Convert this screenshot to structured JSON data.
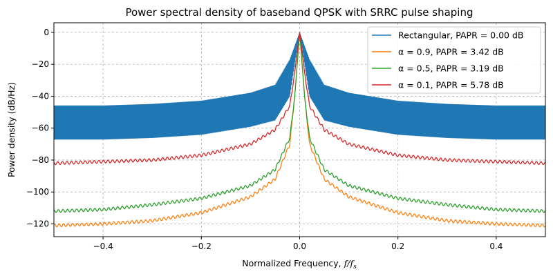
{
  "chart_data": {
    "type": "line",
    "title": "Power spectral density of baseband QPSK with SRRC pulse shaping",
    "xlabel": "Normalized Frequency, ",
    "xlabel_math": "f/f",
    "xlabel_sub": "s",
    "ylabel": "Power density (dB/Hz)",
    "xlim": [
      -0.5,
      0.5
    ],
    "ylim": [
      -128,
      6
    ],
    "xticks": [
      -0.4,
      -0.2,
      0.0,
      0.2,
      0.4
    ],
    "xtick_labels": [
      "−0.4",
      "−0.2",
      "0.0",
      "0.2",
      "0.4"
    ],
    "yticks": [
      0,
      -20,
      -40,
      -60,
      -80,
      -100,
      -120
    ],
    "ytick_labels": [
      "0",
      "−20",
      "−40",
      "−60",
      "−80",
      "−100",
      "−120"
    ],
    "grid": true,
    "legend_position": "top-right",
    "series": [
      {
        "name": "Rectangular, PAPR = 0.00 dB",
        "color": "#1f77b4",
        "model": "rectangular",
        "x": [
          -0.5,
          -0.4,
          -0.3,
          -0.2,
          -0.1,
          -0.05,
          -0.02,
          0.0,
          0.02,
          0.05,
          0.1,
          0.2,
          0.3,
          0.4,
          0.5
        ],
        "upper": [
          -46,
          -46,
          -45,
          -43,
          -38,
          -33,
          -17,
          0,
          -17,
          -33,
          -38,
          -43,
          -45,
          -46,
          -46
        ],
        "lower": [
          -67,
          -67,
          -66,
          -64,
          -59,
          -55,
          -40,
          0,
          -40,
          -55,
          -59,
          -64,
          -66,
          -67,
          -67
        ]
      },
      {
        "name": "α = 0.9, PAPR = 3.42 dB",
        "color": "#ff7f0e",
        "model": "smooth",
        "x": [
          -0.5,
          -0.4,
          -0.3,
          -0.2,
          -0.1,
          -0.05,
          -0.02,
          -0.01,
          0.0,
          0.01,
          0.02,
          0.05,
          0.1,
          0.2,
          0.3,
          0.4,
          0.5
        ],
        "y": [
          -121,
          -120,
          -118,
          -113,
          -103,
          -92,
          -70,
          -40,
          0,
          -40,
          -70,
          -92,
          -103,
          -113,
          -118,
          -120,
          -121
        ]
      },
      {
        "name": "α = 0.5, PAPR = 3.19 dB",
        "color": "#2ca02c",
        "model": "smooth",
        "x": [
          -0.5,
          -0.4,
          -0.3,
          -0.2,
          -0.1,
          -0.05,
          -0.02,
          -0.01,
          0.0,
          0.01,
          0.02,
          0.05,
          0.1,
          0.2,
          0.3,
          0.4,
          0.5
        ],
        "y": [
          -112,
          -111,
          -108,
          -104,
          -96,
          -86,
          -66,
          -40,
          0,
          -40,
          -66,
          -86,
          -96,
          -104,
          -108,
          -111,
          -112
        ]
      },
      {
        "name": "α = 0.1, PAPR = 5.78 dB",
        "color": "#d62728",
        "model": "smooth",
        "x": [
          -0.5,
          -0.4,
          -0.3,
          -0.2,
          -0.1,
          -0.05,
          -0.02,
          -0.01,
          0.0,
          0.01,
          0.02,
          0.05,
          0.1,
          0.2,
          0.3,
          0.4,
          0.5
        ],
        "y": [
          -82,
          -81,
          -80,
          -77,
          -70,
          -61,
          -46,
          -25,
          0,
          -25,
          -46,
          -61,
          -70,
          -77,
          -80,
          -81,
          -82
        ]
      }
    ]
  }
}
